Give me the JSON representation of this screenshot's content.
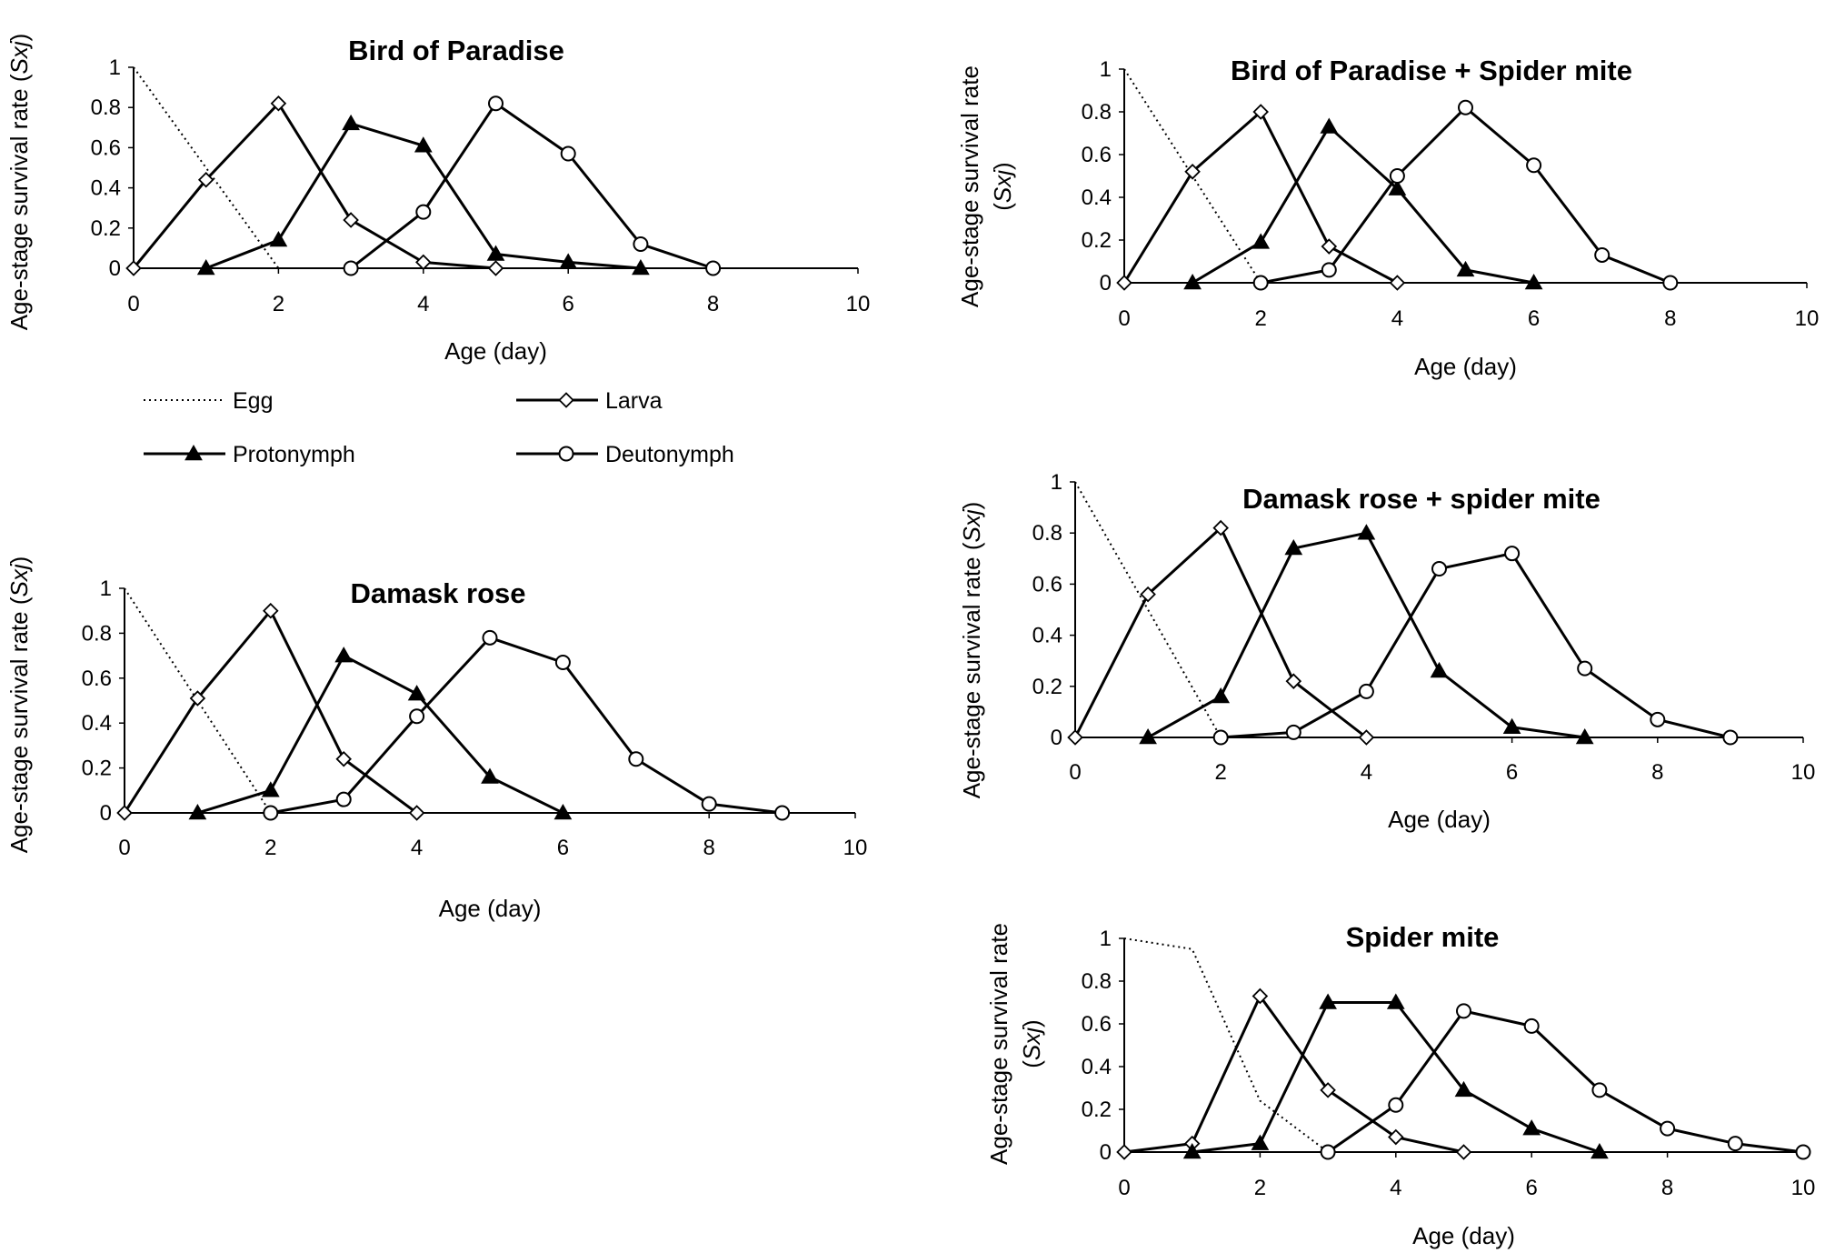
{
  "legend": {
    "items": [
      {
        "name": "Egg",
        "style": "dotted",
        "marker": "none"
      },
      {
        "name": "Larva",
        "style": "solid",
        "marker": "diamond"
      },
      {
        "name": "Protonymph",
        "style": "solid",
        "marker": "triangle"
      },
      {
        "name": "Deutonymph",
        "style": "solid",
        "marker": "circle"
      }
    ]
  },
  "chart_data": [
    {
      "type": "line",
      "title": "Bird of Paradise",
      "xlabel": "Age (day)",
      "ylabel": "Age-stage survival rate (Sxj)",
      "xlim": [
        0,
        10
      ],
      "ylim": [
        0,
        1
      ],
      "xticks": [
        "0",
        "2",
        "4",
        "6",
        "8",
        "10"
      ],
      "yticks": [
        "0",
        "0.2",
        "0.4",
        "0.6",
        "0.8",
        "1"
      ],
      "series": [
        {
          "name": "Egg",
          "x": [
            0,
            1,
            2
          ],
          "y": [
            1,
            0.5,
            0
          ]
        },
        {
          "name": "Larva",
          "x": [
            0,
            1,
            2,
            3,
            4,
            5
          ],
          "y": [
            0,
            0.44,
            0.82,
            0.24,
            0.03,
            0
          ]
        },
        {
          "name": "Protonymph",
          "x": [
            1,
            2,
            3,
            4,
            5,
            6,
            7
          ],
          "y": [
            0,
            0.14,
            0.72,
            0.61,
            0.07,
            0.03,
            0
          ]
        },
        {
          "name": "Deutonymph",
          "x": [
            3,
            4,
            5,
            6,
            7,
            8
          ],
          "y": [
            0,
            0.28,
            0.82,
            0.57,
            0.12,
            0
          ]
        }
      ]
    },
    {
      "type": "line",
      "title": "Bird of Paradise + Spider mite",
      "xlabel": "Age (day)",
      "ylabel": "Age-stage survival rate (Sxj)",
      "xlim": [
        0,
        10
      ],
      "ylim": [
        0,
        1
      ],
      "xticks": [
        "0",
        "2",
        "4",
        "6",
        "8",
        "10"
      ],
      "yticks": [
        "0",
        "0.2",
        "0.4",
        "0.6",
        "0.8",
        "1"
      ],
      "series": [
        {
          "name": "Egg",
          "x": [
            0,
            1,
            2
          ],
          "y": [
            1,
            0.5,
            0
          ]
        },
        {
          "name": "Larva",
          "x": [
            0,
            1,
            2,
            3,
            4
          ],
          "y": [
            0,
            0.52,
            0.8,
            0.17,
            0
          ]
        },
        {
          "name": "Protonymph",
          "x": [
            1,
            2,
            3,
            4,
            5,
            6
          ],
          "y": [
            0,
            0.19,
            0.73,
            0.44,
            0.06,
            0
          ]
        },
        {
          "name": "Deutonymph",
          "x": [
            2,
            3,
            4,
            5,
            6,
            7,
            8
          ],
          "y": [
            0,
            0.06,
            0.5,
            0.82,
            0.55,
            0.13,
            0
          ]
        }
      ]
    },
    {
      "type": "line",
      "title": "Damask rose",
      "xlabel": "Age (day)",
      "ylabel": "Age-stage survival rate (Sxj)",
      "xlim": [
        0,
        10
      ],
      "ylim": [
        0,
        1
      ],
      "xticks": [
        "0",
        "2",
        "4",
        "6",
        "8",
        "10"
      ],
      "yticks": [
        "0",
        "0.2",
        "0.4",
        "0.6",
        "0.8",
        "1"
      ],
      "series": [
        {
          "name": "Egg",
          "x": [
            0,
            1,
            2
          ],
          "y": [
            1,
            0.5,
            0
          ]
        },
        {
          "name": "Larva",
          "x": [
            0,
            1,
            2,
            3,
            4
          ],
          "y": [
            0,
            0.51,
            0.9,
            0.24,
            0
          ]
        },
        {
          "name": "Protonymph",
          "x": [
            1,
            2,
            3,
            4,
            5,
            6
          ],
          "y": [
            0,
            0.1,
            0.7,
            0.53,
            0.16,
            0
          ]
        },
        {
          "name": "Deutonymph",
          "x": [
            2,
            3,
            4,
            5,
            6,
            7,
            8,
            9
          ],
          "y": [
            0,
            0.06,
            0.43,
            0.78,
            0.67,
            0.24,
            0.04,
            0
          ]
        }
      ]
    },
    {
      "type": "line",
      "title": "Damask rose + spider mite",
      "xlabel": "Age (day)",
      "ylabel": "Age-stage survival rate (Sxj)",
      "xlim": [
        0,
        10
      ],
      "ylim": [
        0,
        1
      ],
      "xticks": [
        "0",
        "2",
        "4",
        "6",
        "8",
        "10"
      ],
      "yticks": [
        "0",
        "0.2",
        "0.4",
        "0.6",
        "0.8",
        "1"
      ],
      "series": [
        {
          "name": "Egg",
          "x": [
            0,
            1,
            2
          ],
          "y": [
            1,
            0.5,
            0
          ]
        },
        {
          "name": "Larva",
          "x": [
            0,
            1,
            2,
            3,
            4
          ],
          "y": [
            0,
            0.56,
            0.82,
            0.22,
            0
          ]
        },
        {
          "name": "Protonymph",
          "x": [
            1,
            2,
            3,
            4,
            5,
            6,
            7
          ],
          "y": [
            0,
            0.16,
            0.74,
            0.8,
            0.26,
            0.04,
            0
          ]
        },
        {
          "name": "Deutonymph",
          "x": [
            2,
            3,
            4,
            5,
            6,
            7,
            8,
            9
          ],
          "y": [
            0,
            0.02,
            0.18,
            0.66,
            0.72,
            0.27,
            0.07,
            0
          ]
        }
      ]
    },
    {
      "type": "line",
      "title": "Spider mite",
      "xlabel": "Age (day)",
      "ylabel": "Age-stage survival rate (Sxj)",
      "xlim": [
        0,
        10
      ],
      "ylim": [
        0,
        1
      ],
      "xticks": [
        "0",
        "2",
        "4",
        "6",
        "8",
        "10"
      ],
      "yticks": [
        "0",
        "0.2",
        "0.4",
        "0.6",
        "0.8",
        "1"
      ],
      "series": [
        {
          "name": "Egg",
          "x": [
            0,
            1,
            2,
            3
          ],
          "y": [
            1,
            0.95,
            0.24,
            0
          ]
        },
        {
          "name": "Larva",
          "x": [
            0,
            1,
            2,
            3,
            4,
            5
          ],
          "y": [
            0,
            0.04,
            0.73,
            0.29,
            0.07,
            0
          ]
        },
        {
          "name": "Protonymph",
          "x": [
            1,
            2,
            3,
            4,
            5,
            6,
            7
          ],
          "y": [
            0,
            0.04,
            0.7,
            0.7,
            0.29,
            0.11,
            0
          ]
        },
        {
          "name": "Deutonymph",
          "x": [
            3,
            4,
            5,
            6,
            7,
            8,
            9,
            10
          ],
          "y": [
            0,
            0.22,
            0.66,
            0.59,
            0.29,
            0.11,
            0.04,
            0
          ]
        }
      ]
    }
  ]
}
